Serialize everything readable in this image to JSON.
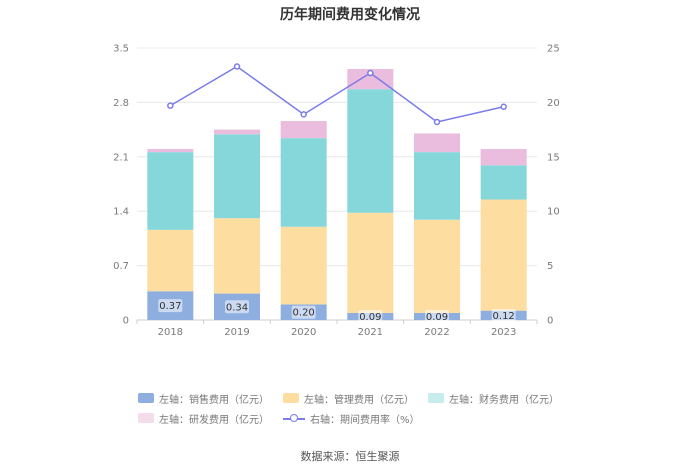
{
  "chart_data": {
    "type": "bar",
    "stacked": true,
    "title": "历年期间费用变化情况",
    "categories": [
      "2018",
      "2019",
      "2020",
      "2021",
      "2022",
      "2023"
    ],
    "left_axis": {
      "min": 0,
      "max": 3.5,
      "ticks": [
        "0",
        "0.7",
        "1.4",
        "2.1",
        "2.8",
        "3.5"
      ]
    },
    "right_axis": {
      "min": 0,
      "max": 25,
      "ticks": [
        "0",
        "5",
        "10",
        "15",
        "20",
        "25"
      ]
    },
    "series": [
      {
        "name": "左轴：销售费用（亿元）",
        "axis": "left",
        "color": "#8eaee0",
        "values": [
          0.37,
          0.34,
          0.2,
          0.09,
          0.09,
          0.12
        ],
        "labels": [
          "0.37",
          "0.34",
          "0.20",
          "0.09",
          "0.09",
          "0.12"
        ]
      },
      {
        "name": "左轴：管理费用（亿元）",
        "axis": "left",
        "color": "#fddda0",
        "values": [
          0.79,
          0.97,
          1.0,
          1.29,
          1.2,
          1.43
        ]
      },
      {
        "name": "左轴：财务费用（亿元）",
        "axis": "left",
        "color": "#86d7da",
        "values": [
          1.0,
          1.08,
          1.14,
          1.59,
          0.87,
          0.44
        ]
      },
      {
        "name": "左轴：研发费用（亿元）",
        "axis": "left",
        "color": "#eabcdd",
        "values": [
          0.04,
          0.06,
          0.22,
          0.26,
          0.24,
          0.21
        ]
      },
      {
        "name": "右轴：期间费用率（%）",
        "axis": "right",
        "type": "line",
        "color": "#7b7bea",
        "values": [
          19.7,
          23.3,
          18.9,
          22.7,
          18.2,
          19.6
        ]
      }
    ]
  },
  "legend": [
    {
      "label": "左轴：销售费用（亿元）",
      "color": "#8eaee0"
    },
    {
      "label": "左轴：管理费用（亿元）",
      "color": "#fddda0"
    },
    {
      "label": "左轴：财务费用（亿元）",
      "color": "#c6ecee"
    },
    {
      "label": "左轴：研发费用（亿元）",
      "color": "#f3dcec"
    },
    {
      "label": "右轴：期间费用率（%）",
      "color": "#7b7bea"
    }
  ],
  "source": "数据来源：恒生聚源"
}
